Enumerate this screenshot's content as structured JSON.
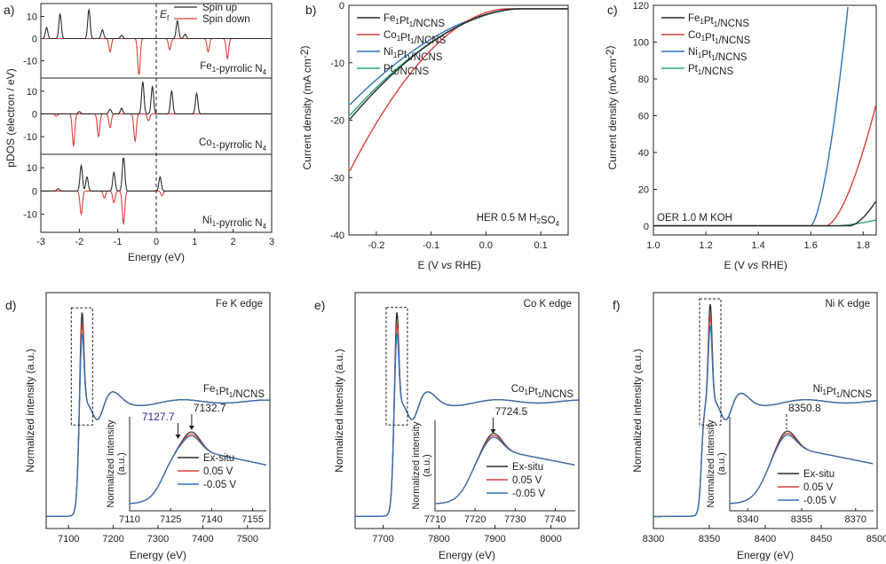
{
  "colors": {
    "black": "#2b2b2b",
    "red": "#d9403a",
    "blue": "#2f72b8",
    "green": "#2aa37a",
    "annot_blue": "#2a2a8c",
    "hlines": "#333333"
  },
  "chart_data": [
    {
      "id": "a",
      "panel_label": "a)",
      "type": "line",
      "title": "",
      "xlabel": "Energy (eV)",
      "ylabel": "pDOS (electron / eV)",
      "xlim": [
        -3,
        3
      ],
      "xticks": [
        "-3",
        "-2",
        "-1",
        "0",
        "1",
        "2",
        "3"
      ],
      "yticks": [
        "10",
        "0",
        "-10"
      ],
      "ef_label": "E",
      "ef_sub": "f",
      "legend": [
        {
          "name": "Spin up",
          "color": "#2b2b2b"
        },
        {
          "name": "Spin down",
          "color": "#d9403a"
        }
      ],
      "subplots": [
        {
          "label": "Fe",
          "label_sub": "1",
          "label_rest": "-pyrrolic N",
          "label_sub2": "4",
          "up_peaks": [
            [
              -2.85,
              5
            ],
            [
              -2.5,
              11
            ],
            [
              -1.75,
              13
            ],
            [
              -1.4,
              4
            ],
            [
              -0.9,
              1.5
            ],
            [
              0.55,
              8
            ],
            [
              0.75,
              2
            ]
          ],
          "down_peaks": [
            [
              -1.2,
              -6
            ],
            [
              -0.45,
              -17
            ],
            [
              0.35,
              -5
            ],
            [
              1.35,
              -6
            ],
            [
              1.85,
              -9
            ]
          ]
        },
        {
          "label": "Co",
          "label_sub": "1",
          "label_rest": "-pyrrolic N",
          "label_sub2": "4",
          "up_peaks": [
            [
              -2.0,
              1
            ],
            [
              -1.2,
              2
            ],
            [
              -0.9,
              2.5
            ],
            [
              -0.35,
              14
            ],
            [
              -0.1,
              12
            ],
            [
              0.4,
              10
            ],
            [
              1.05,
              9
            ]
          ],
          "down_peaks": [
            [
              -2.6,
              -1
            ],
            [
              -2.15,
              -14
            ],
            [
              -1.5,
              -10
            ],
            [
              -1.2,
              -6
            ],
            [
              -0.55,
              -12
            ],
            [
              -0.2,
              -3
            ]
          ]
        },
        {
          "label": "Ni",
          "label_sub": "1",
          "label_rest": "-pyrrolic N",
          "label_sub2": "4",
          "up_peaks": [
            [
              -2.55,
              1
            ],
            [
              -1.95,
              11
            ],
            [
              -1.8,
              6
            ],
            [
              -1.1,
              8
            ],
            [
              -0.85,
              15
            ],
            [
              0.1,
              6
            ]
          ],
          "down_peaks": [
            [
              -1.95,
              -10
            ],
            [
              -1.35,
              -3
            ],
            [
              -1.1,
              -5
            ],
            [
              -0.85,
              -14
            ],
            [
              0.15,
              -2
            ]
          ]
        }
      ]
    },
    {
      "id": "b",
      "panel_label": "b)",
      "type": "line",
      "title": "",
      "xlabel": "E (V vs RHE)",
      "ylabel": "Current density (mA cm-2)",
      "xlim": [
        -0.25,
        0.15
      ],
      "ylim": [
        -40,
        0
      ],
      "xticks": [
        "-0.2",
        "-0.1",
        "0.0",
        "0.1"
      ],
      "yticks": [
        "0",
        "-10",
        "-20",
        "-30",
        "-40"
      ],
      "annotation": "HER 0.5 M H2SO4",
      "series": [
        {
          "name": "Fe1Pt1/NCNS",
          "color": "#2b2b2b",
          "onset": 0.06,
          "k": 320,
          "p": 1.8
        },
        {
          "name": "Co1Pt1/NCNS",
          "color": "#d9403a",
          "onset": 0.04,
          "k": 600,
          "p": 1.9
        },
        {
          "name": "Ni1Pt1/NCNS",
          "color": "#2f72b8",
          "onset": 0.065,
          "k": 270,
          "p": 1.8
        },
        {
          "name": "Pt1/NCNS",
          "color": "#2aa37a",
          "onset": 0.065,
          "k": 300,
          "p": 1.8
        }
      ]
    },
    {
      "id": "c",
      "panel_label": "c)",
      "type": "line",
      "title": "",
      "xlabel": "E (V vs RHE)",
      "ylabel": "Current density (mA cm-2)",
      "xlim": [
        1.0,
        1.85
      ],
      "ylim": [
        0,
        120
      ],
      "xticks": [
        "1.0",
        "1.2",
        "1.4",
        "1.6",
        "1.8"
      ],
      "yticks": [
        "0",
        "20",
        "40",
        "60",
        "80",
        "100",
        "120"
      ],
      "annotation": "OER 1.0 M KOH",
      "series": [
        {
          "name": "Fe1Pt1/NCNS",
          "color": "#2b2b2b",
          "onset": 1.75,
          "k": 1200,
          "p": 1.6
        },
        {
          "name": "Co1Pt1/NCNS",
          "color": "#d9403a",
          "onset": 1.66,
          "k": 2100,
          "p": 1.6
        },
        {
          "name": "Ni1Pt1/NCNS",
          "color": "#2f72b8",
          "onset": 1.6,
          "k": 6000,
          "p": 1.6
        },
        {
          "name": "Pt1/NCNS",
          "color": "#2aa37a",
          "onset": 1.7,
          "k": 120,
          "p": 1.5
        }
      ]
    },
    {
      "id": "d",
      "panel_label": "d)",
      "type": "line",
      "title": "Fe K edge",
      "sample": "Fe1Pt1/NCNS",
      "xlabel": "Energy (eV)",
      "ylabel": "Normalized intensity (a.u.)",
      "xlim": [
        7050,
        7550
      ],
      "xticks": [
        "7100",
        "7200",
        "7300",
        "7400",
        "7500"
      ],
      "edge": 7122,
      "peak": 7130,
      "inset": {
        "xlim": [
          7110,
          7160
        ],
        "xticks": [
          "7110",
          "7125",
          "7140",
          "7155"
        ],
        "ylabel": "Normalized intensity (a.u.)",
        "peaks": [
          {
            "label": "7127.7",
            "x": 7127.7,
            "color": "#2a2a8c"
          },
          {
            "label": "7132.7",
            "x": 7132.7,
            "color": "#222222"
          }
        ]
      },
      "series": [
        {
          "name": "Ex-situ",
          "color": "#2b2b2b"
        },
        {
          "name": "0.05 V",
          "color": "#d9403a"
        },
        {
          "name": "-0.05 V",
          "color": "#2f72b8"
        }
      ]
    },
    {
      "id": "e",
      "panel_label": "e)",
      "type": "line",
      "title": "Co K edge",
      "sample": "Co1Pt1/NCNS",
      "xlabel": "Energy (eV)",
      "ylabel": "Normalized intensity (a.u.)",
      "xlim": [
        7650,
        8050
      ],
      "xticks": [
        "7700",
        "7800",
        "7900",
        "8000"
      ],
      "edge": 7718,
      "peak": 7724.5,
      "inset": {
        "xlim": [
          7710,
          7745
        ],
        "xticks": [
          "7710",
          "7720",
          "7730",
          "7740"
        ],
        "ylabel": "Normalized intensity (a.u.)",
        "peaks": [
          {
            "label": "7724.5",
            "x": 7724.5,
            "color": "#222222"
          }
        ]
      },
      "series": [
        {
          "name": "Ex-situ",
          "color": "#2b2b2b"
        },
        {
          "name": "0.05 V",
          "color": "#d9403a"
        },
        {
          "name": "-0.05 V",
          "color": "#2f72b8"
        }
      ]
    },
    {
      "id": "f",
      "panel_label": "f)",
      "type": "line",
      "title": "Ni K edge",
      "sample": "Ni1Pt1/NCNS",
      "xlabel": "Energy (eV)",
      "ylabel": "Normalized intensity (a.u.)",
      "xlim": [
        8300,
        8500
      ],
      "xticks": [
        "8300",
        "8350",
        "8400",
        "8450",
        "8500"
      ],
      "edge": 8343,
      "peak": 8350.8,
      "inset": {
        "xlim": [
          8335,
          8375
        ],
        "xticks": [
          "8340",
          "8355",
          "8370"
        ],
        "ylabel": "Normalized intensity (a.u.)",
        "peaks": [
          {
            "label": "8350.8",
            "x": 8350.8,
            "color": "#222222"
          }
        ]
      },
      "series": [
        {
          "name": "Ex-situ",
          "color": "#2b2b2b"
        },
        {
          "name": "0.05 V",
          "color": "#d9403a"
        },
        {
          "name": "-0.05 V",
          "color": "#2f72b8"
        }
      ]
    }
  ]
}
